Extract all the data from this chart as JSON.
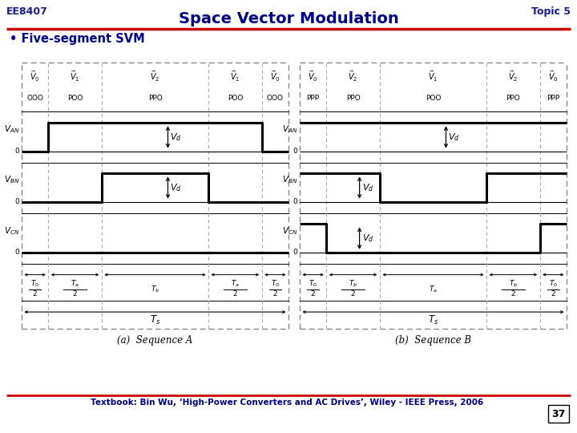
{
  "title": "Space Vector Modulation",
  "header_left": "EE8407",
  "header_right": "Topic 5",
  "bullet": "• Five-segment SVM",
  "footer": "Textbook: Bin Wu, ‘High-Power Converters and AC Drives’, Wiley - IEEE Press, 2006",
  "page_num": "37",
  "bg_color": "#ffffff",
  "title_color": "#00008B",
  "header_color": "#1a1a8c",
  "bullet_color": "#00008B",
  "red_line_color": "#cc0000",
  "dc": "#000000",
  "seq_a": {
    "label": "(a)  Sequence A",
    "vectors": [
      "V_0",
      "V_1",
      "V_2",
      "V_1",
      "V_0"
    ],
    "codes": [
      "OOO",
      "POO",
      "PPO",
      "POO",
      "OOO"
    ],
    "segments": [
      1,
      2,
      4,
      2,
      1
    ],
    "time_top": [
      "T_0",
      "T_a",
      "T_b",
      "T_a",
      "T_0"
    ],
    "time_div2": [
      true,
      true,
      false,
      true,
      true
    ],
    "VAN": [
      0,
      1,
      1,
      1,
      0
    ],
    "VBN": [
      0,
      0,
      1,
      0,
      0
    ],
    "VCN": [
      0,
      0,
      0,
      0,
      0
    ],
    "vd_van_seg": 2,
    "vd_vbn_seg": 2,
    "vd_vcn_seg": -1
  },
  "seq_b": {
    "label": "(b)  Sequence B",
    "vectors": [
      "V_0",
      "V_2",
      "V_1",
      "V_2",
      "V_0"
    ],
    "codes": [
      "PPP",
      "PPO",
      "POO",
      "PPO",
      "PPP"
    ],
    "segments": [
      1,
      2,
      4,
      2,
      1
    ],
    "time_top": [
      "T_0",
      "T_b",
      "T_a",
      "T_b",
      "T_0"
    ],
    "time_div2": [
      true,
      true,
      false,
      true,
      true
    ],
    "VAN": [
      1,
      1,
      1,
      1,
      1
    ],
    "VBN": [
      1,
      1,
      0,
      1,
      1
    ],
    "VCN": [
      1,
      0,
      0,
      0,
      1
    ],
    "vd_van_seg": 2,
    "vd_vbn_seg": 1,
    "vd_vcn_seg": 1
  }
}
